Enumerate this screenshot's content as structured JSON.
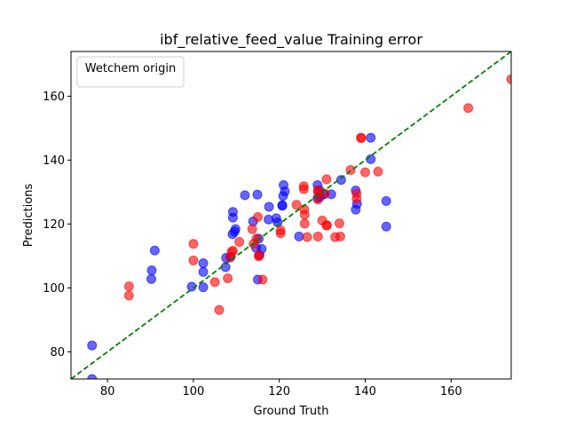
{
  "chart_data": {
    "type": "scatter",
    "title": "ibf_relative_feed_value Training error",
    "xlabel": "Ground Truth",
    "ylabel": "Predictions",
    "xlim": [
      71.5,
      174
    ],
    "ylim": [
      71.5,
      174
    ],
    "xticks": [
      80,
      100,
      120,
      140,
      160
    ],
    "yticks": [
      80,
      100,
      120,
      140,
      160
    ],
    "grid": false,
    "legend": {
      "title": "Wetchem origin",
      "placement": "top-left",
      "entries": []
    },
    "reference_line": {
      "style": "dashed",
      "color": "#008000",
      "from": [
        71.5,
        71.5
      ],
      "to": [
        174,
        174
      ]
    },
    "series": [
      {
        "color": "#0000ff",
        "opacity": 0.6,
        "points": [
          [
            76.4,
            82
          ],
          [
            76.4,
            71.5
          ],
          [
            90.3,
            105.5
          ],
          [
            90.2,
            102.8
          ],
          [
            91,
            111.7
          ],
          [
            99.6,
            100.4
          ],
          [
            102.3,
            107.7
          ],
          [
            102.3,
            105
          ],
          [
            102.3,
            100.2
          ],
          [
            107.5,
            106.5
          ],
          [
            107.6,
            109.4
          ],
          [
            108.7,
            109.8
          ],
          [
            109.1,
            116.8
          ],
          [
            109.2,
            123.8
          ],
          [
            109.2,
            122
          ],
          [
            109.6,
            117.6
          ],
          [
            109.8,
            118.4
          ],
          [
            112,
            129
          ],
          [
            114.6,
            112.5
          ],
          [
            114.9,
            129.2
          ],
          [
            115,
            102.6
          ],
          [
            115.2,
            115.4
          ],
          [
            115.4,
            110.3
          ],
          [
            115.9,
            112.2
          ],
          [
            117.5,
            121.4
          ],
          [
            117.6,
            125.4
          ],
          [
            119.3,
            121.8
          ],
          [
            119.6,
            120.5
          ],
          [
            120.7,
            125.9
          ],
          [
            120.7,
            125.7
          ],
          [
            120.9,
            128.8
          ],
          [
            121,
            132.2
          ],
          [
            121.3,
            130.2
          ],
          [
            124.6,
            116.1
          ],
          [
            128.9,
            132.2
          ],
          [
            128.9,
            128.1
          ],
          [
            129.4,
            130.5
          ],
          [
            129.5,
            128.5
          ],
          [
            130.4,
            129.3
          ],
          [
            132.1,
            129.3
          ],
          [
            134.4,
            133.8
          ],
          [
            137.8,
            130.5
          ],
          [
            137.8,
            124.5
          ],
          [
            138.1,
            126.3
          ],
          [
            141.3,
            147
          ],
          [
            141.3,
            140.3
          ],
          [
            144.9,
            127.2
          ],
          [
            144.9,
            119.2
          ],
          [
            113.9,
            120.8
          ]
        ]
      },
      {
        "color": "#ff0000",
        "opacity": 0.6,
        "points": [
          [
            85,
            100.5
          ],
          [
            85,
            97.6
          ],
          [
            100,
            113.8
          ],
          [
            100,
            108.6
          ],
          [
            105,
            101.8
          ],
          [
            106,
            93.1
          ],
          [
            108,
            103
          ],
          [
            108.5,
            109.5
          ],
          [
            108.9,
            111.3
          ],
          [
            109.2,
            111.6
          ],
          [
            110.7,
            114.4
          ],
          [
            113.7,
            118.4
          ],
          [
            114,
            113.8
          ],
          [
            114.7,
            115.5
          ],
          [
            115,
            122.2
          ],
          [
            115.2,
            109.9
          ],
          [
            115.3,
            110.2
          ],
          [
            116.1,
            102.6
          ],
          [
            120.3,
            118
          ],
          [
            120.3,
            117.1
          ],
          [
            124,
            126
          ],
          [
            125.7,
            131.8
          ],
          [
            125.7,
            130.9
          ],
          [
            125.8,
            124.6
          ],
          [
            125.9,
            122.9
          ],
          [
            125.9,
            120.1
          ],
          [
            126.5,
            115.9
          ],
          [
            129,
            130.6
          ],
          [
            129,
            130
          ],
          [
            129,
            127.7
          ],
          [
            129,
            116.1
          ],
          [
            130,
            121.1
          ],
          [
            130.6,
            129.5
          ],
          [
            131,
            134
          ],
          [
            131,
            119.6
          ],
          [
            131.1,
            119.6
          ],
          [
            133,
            115.9
          ],
          [
            134,
            120.2
          ],
          [
            134.2,
            116.1
          ],
          [
            136.6,
            136.9
          ],
          [
            138,
            129.5
          ],
          [
            138,
            127.9
          ],
          [
            139,
            147
          ],
          [
            139.1,
            146.9
          ],
          [
            140,
            136.2
          ],
          [
            143,
            136.4
          ],
          [
            164,
            156.3
          ],
          [
            174,
            165.3
          ]
        ]
      }
    ]
  }
}
